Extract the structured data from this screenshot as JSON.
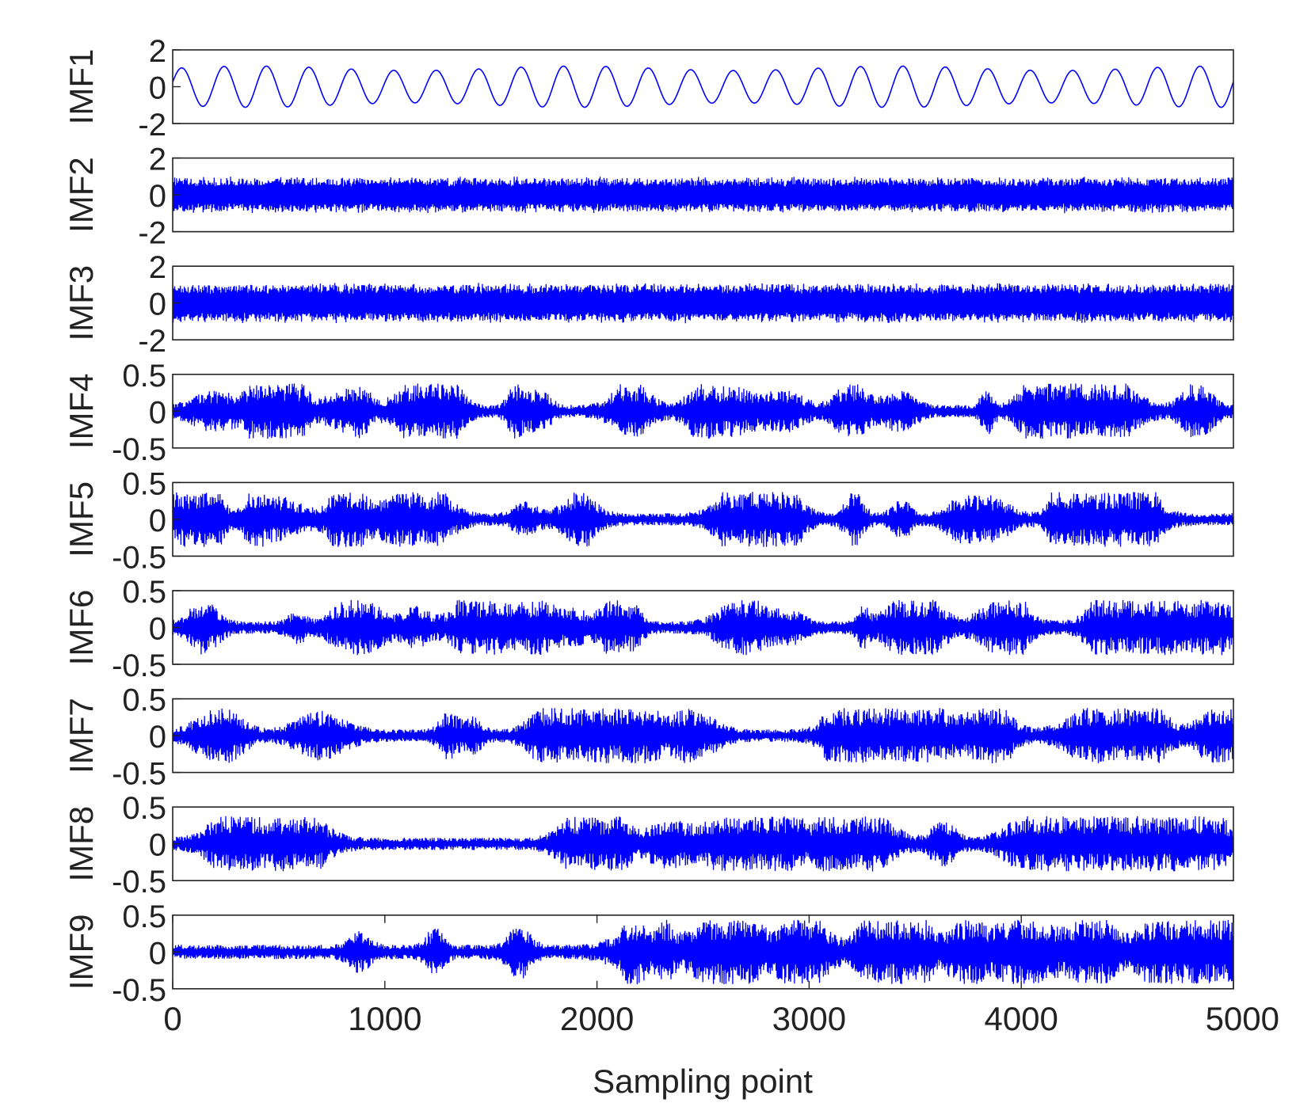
{
  "chart_data": {
    "type": "line",
    "xlabel": "Sampling point",
    "xlim": [
      0,
      5000
    ],
    "xticks": [
      0,
      1000,
      2000,
      3000,
      4000,
      5000
    ],
    "x_tick_labels": [
      "0",
      "1000",
      "2000",
      "3000",
      "4000",
      "5000"
    ],
    "line_color": "#0000ff",
    "axes_color": "#222222",
    "grid": false,
    "panels": [
      {
        "name": "IMF1",
        "ylabel": "IMF1",
        "ylim": [
          -2,
          2
        ],
        "yticks": [
          2,
          0,
          -2
        ],
        "ytick_labels": [
          "2",
          "0",
          "-2"
        ],
        "kind": "sine",
        "amplitude": 1.0,
        "cycles": 25
      },
      {
        "name": "IMF2",
        "ylabel": "IMF2",
        "ylim": [
          -2,
          2
        ],
        "yticks": [
          2,
          0,
          -2
        ],
        "ytick_labels": [
          "2",
          "0",
          "-2"
        ],
        "kind": "noise",
        "amplitude": 1.0
      },
      {
        "name": "IMF3",
        "ylabel": "IMF3",
        "ylim": [
          -2,
          2
        ],
        "yticks": [
          2,
          0,
          -2
        ],
        "ytick_labels": [
          "2",
          "0",
          "-2"
        ],
        "kind": "noise",
        "amplitude": 1.1
      },
      {
        "name": "IMF4",
        "ylabel": "IMF4",
        "ylim": [
          -0.5,
          0.5
        ],
        "yticks": [
          0.5,
          0,
          -0.5
        ],
        "ytick_labels": [
          "0.5",
          "0",
          "-0.5"
        ],
        "kind": "bursty",
        "amplitude": 0.3
      },
      {
        "name": "IMF5",
        "ylabel": "IMF5",
        "ylim": [
          -0.5,
          0.5
        ],
        "yticks": [
          0.5,
          0,
          -0.5
        ],
        "ytick_labels": [
          "0.5",
          "0",
          "-0.5"
        ],
        "kind": "bursty",
        "amplitude": 0.3
      },
      {
        "name": "IMF6",
        "ylabel": "IMF6",
        "ylim": [
          -0.5,
          0.5
        ],
        "yticks": [
          0.5,
          0,
          -0.5
        ],
        "ytick_labels": [
          "0.5",
          "0",
          "-0.5"
        ],
        "kind": "bursty",
        "amplitude": 0.3
      },
      {
        "name": "IMF7",
        "ylabel": "IMF7",
        "ylim": [
          -0.5,
          0.5
        ],
        "yticks": [
          0.5,
          0,
          -0.5
        ],
        "ytick_labels": [
          "0.5",
          "0",
          "-0.5"
        ],
        "kind": "bursty",
        "amplitude": 0.3
      },
      {
        "name": "IMF8",
        "ylabel": "IMF8",
        "ylim": [
          -0.5,
          0.5
        ],
        "yticks": [
          0.5,
          0,
          -0.5
        ],
        "ytick_labels": [
          "0.5",
          "0",
          "-0.5"
        ],
        "kind": "bursty",
        "amplitude": 0.3
      },
      {
        "name": "IMF9",
        "ylabel": "IMF9",
        "ylim": [
          -0.5,
          0.5
        ],
        "yticks": [
          0.5,
          0,
          -0.5
        ],
        "ytick_labels": [
          "0.5",
          "0",
          "-0.5"
        ],
        "kind": "bursty",
        "amplitude": 0.35
      }
    ]
  }
}
